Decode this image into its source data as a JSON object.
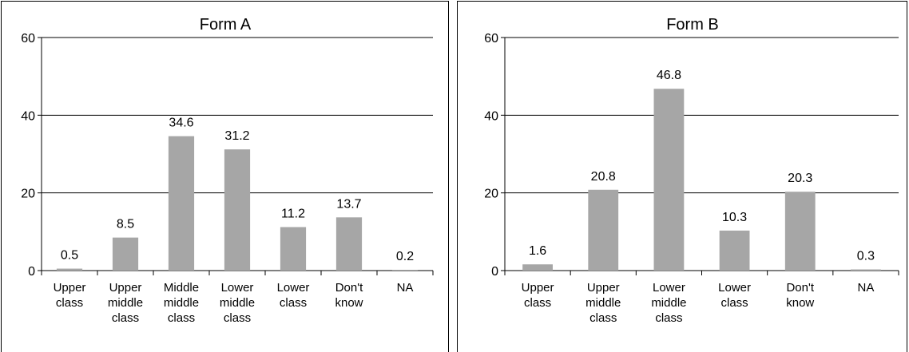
{
  "chart_data": [
    {
      "type": "bar",
      "title": "Form A",
      "categories": [
        "Upper class",
        "Upper middle class",
        "Middle middle class",
        "Lower middle class",
        "Lower class",
        "Don't know",
        "NA"
      ],
      "values": [
        0.5,
        8.5,
        34.6,
        31.2,
        11.2,
        13.7,
        0.2
      ],
      "color": "#a6a6a6",
      "ylim": [
        0,
        60
      ],
      "yticks": [
        0,
        20,
        40,
        60
      ],
      "grid": true
    },
    {
      "type": "bar",
      "title": "Form B",
      "categories": [
        "Upper class",
        "Upper middle class",
        "Lower middle class",
        "Lower class",
        "Don't know",
        "NA"
      ],
      "values": [
        1.6,
        20.8,
        46.8,
        10.3,
        20.3,
        0.3
      ],
      "color": "#a6a6a6",
      "ylim": [
        0,
        60
      ],
      "yticks": [
        0,
        20,
        40,
        60
      ],
      "grid": true
    }
  ]
}
